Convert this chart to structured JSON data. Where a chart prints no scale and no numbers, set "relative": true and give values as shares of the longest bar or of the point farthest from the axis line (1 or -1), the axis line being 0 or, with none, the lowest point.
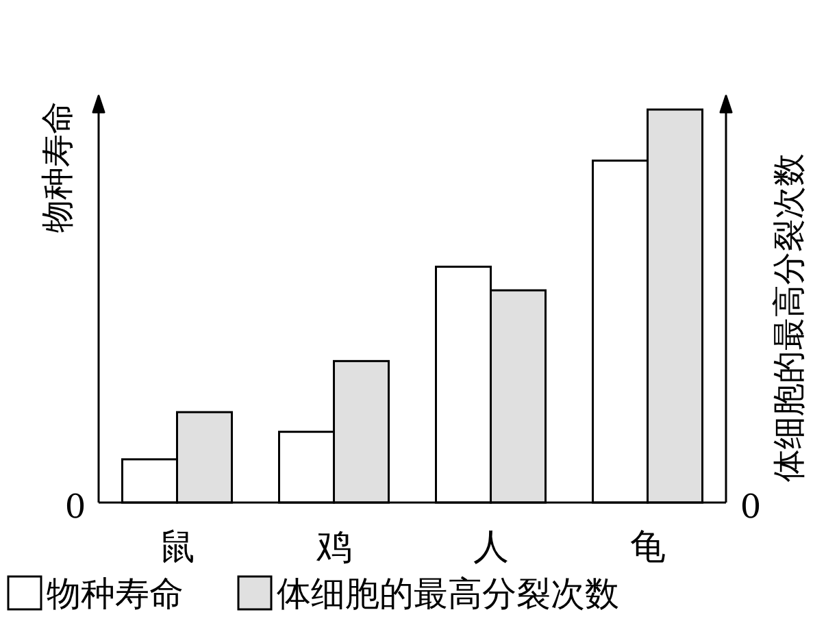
{
  "chart_data": {
    "type": "bar",
    "relative": true,
    "categories": [
      "鼠",
      "鸡",
      "人",
      "龟"
    ],
    "ylabel": "物种寿命",
    "y2label": "体细胞的最高分裂次数",
    "legend": "bottom",
    "annotations": [
      "0",
      "0"
    ],
    "series": [
      {
        "name": "物种寿命",
        "color": "#ffffff",
        "values": [
          0.11,
          0.18,
          0.6,
          0.87
        ]
      },
      {
        "name": "体细胞的最高分裂次数",
        "color": "#e0e0e0",
        "values": [
          0.23,
          0.36,
          0.54,
          1
        ]
      }
    ]
  }
}
